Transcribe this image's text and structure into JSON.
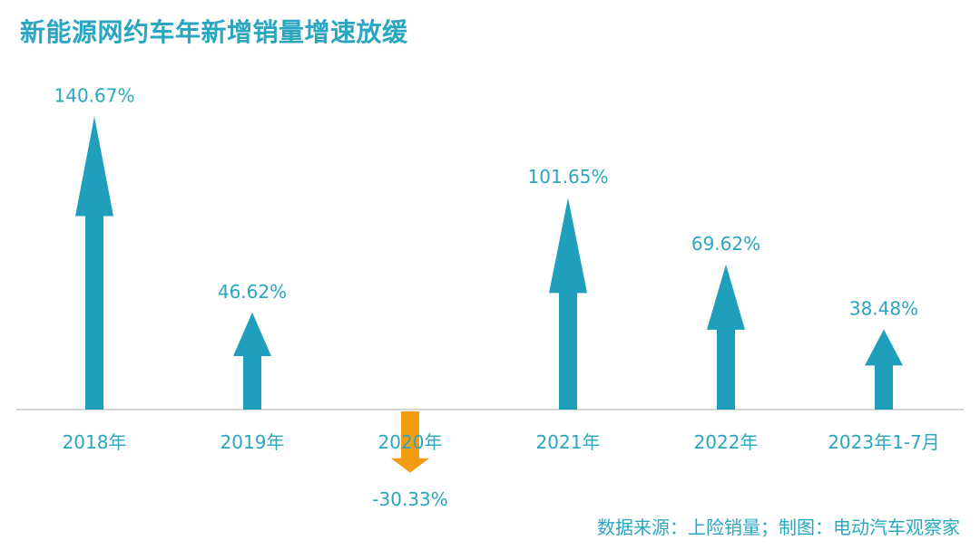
{
  "chart_data": {
    "type": "bar",
    "title": "新能源网约车年新增销量增速放缓",
    "categories": [
      "2018年",
      "2019年",
      "2020年",
      "2021年",
      "2022年",
      "2023年1-7月"
    ],
    "values": [
      140.67,
      46.62,
      -30.33,
      101.65,
      69.62,
      38.48
    ],
    "value_labels": [
      "140.67%",
      "46.62%",
      "-30.33%",
      "101.65%",
      "69.62%",
      "38.48%"
    ],
    "xlabel": "",
    "ylabel": "",
    "grid": false,
    "legend": "none"
  },
  "colors": {
    "positive": "#209fbd",
    "negative": "#f39c12",
    "text": "#2aa6c0",
    "axis": "#c8c8c8"
  },
  "source_text": "数据来源：上险销量；制图：电动汽车观察家"
}
